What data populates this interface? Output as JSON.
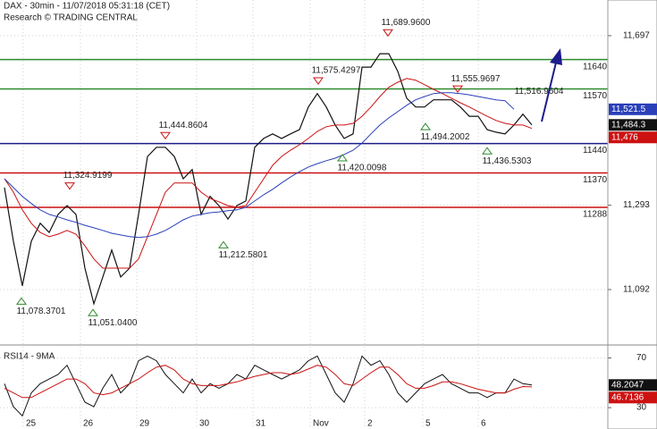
{
  "chart_data": {
    "type": "line",
    "title": "DAX - 30min - 11/07/2018 05:31:18 (CET)",
    "subtitle": "Research © TRADING CENTRAL",
    "x": [
      0,
      1,
      2,
      3,
      4,
      5,
      6,
      7,
      8,
      9,
      10,
      11,
      12,
      13,
      14,
      15,
      16,
      17,
      18,
      19,
      20,
      21,
      22,
      23,
      24,
      25,
      26,
      27,
      28,
      29,
      30,
      31,
      32,
      33,
      34,
      35,
      36,
      37,
      38,
      39,
      40,
      41,
      42,
      43,
      44,
      45,
      46,
      47,
      48,
      49,
      50,
      51,
      52,
      53,
      54,
      55,
      56,
      57,
      58,
      59
    ],
    "xlim": [
      -0.5,
      67.5
    ],
    "xticks": [
      {
        "value": 2.1,
        "label": "25"
      },
      {
        "value": 8.5,
        "label": "26"
      },
      {
        "value": 14.8,
        "label": "29"
      },
      {
        "value": 21.5,
        "label": "30"
      },
      {
        "value": 27.8,
        "label": "31"
      },
      {
        "value": 34.2,
        "label": "Nov"
      },
      {
        "value": 40.3,
        "label": "2"
      },
      {
        "value": 46.8,
        "label": "5"
      },
      {
        "value": 53,
        "label": "6"
      }
    ],
    "ylim": [
      10962,
      11782
    ],
    "yticks": [
      {
        "value": 11697,
        "label": "11,697"
      },
      {
        "value": 11293,
        "label": "11,293"
      },
      {
        "value": 11092,
        "label": "11,092"
      }
    ],
    "grid": true,
    "series": [
      {
        "color": "#111111",
        "width": 1.2,
        "values": [
          11335,
          11207,
          11101,
          11207,
          11250,
          11228,
          11271,
          11292,
          11271,
          11143,
          11058,
          11122,
          11186,
          11122,
          11143,
          11271,
          11409,
          11431,
          11431,
          11409,
          11356,
          11378,
          11271,
          11314,
          11292,
          11260,
          11292,
          11303,
          11431,
          11452,
          11463,
          11452,
          11463,
          11473,
          11527,
          11559,
          11527,
          11484,
          11452,
          11463,
          11622,
          11622,
          11654,
          11654,
          11612,
          11548,
          11527,
          11527,
          11544,
          11544,
          11544,
          11527,
          11505,
          11505,
          11473,
          11467,
          11463,
          11484,
          11510,
          11484.3
        ],
        "last_label": "11,484.3"
      },
      {
        "color": "#cc1111",
        "width": 1,
        "values": [
          11356,
          11324,
          11282,
          11250,
          11228,
          11218,
          11224,
          11233,
          11224,
          11196,
          11165,
          11143,
          11143,
          11143,
          11143,
          11165,
          11218,
          11271,
          11324,
          11346,
          11346,
          11346,
          11324,
          11309,
          11301,
          11292,
          11288,
          11292,
          11324,
          11356,
          11388,
          11409,
          11424,
          11437,
          11452,
          11469,
          11480,
          11484,
          11484,
          11488,
          11505,
          11527,
          11552,
          11574,
          11586,
          11595,
          11591,
          11580,
          11569,
          11559,
          11548,
          11537,
          11527,
          11516,
          11505,
          11495,
          11488,
          11484,
          11484,
          11476
        ],
        "last_label": "11,476"
      },
      {
        "color": "#2a3fb8",
        "width": 1,
        "values": [
          11356,
          11335,
          11314,
          11297,
          11282,
          11271,
          11265,
          11258,
          11252,
          11245,
          11239,
          11233,
          11226,
          11222,
          11218,
          11216,
          11218,
          11224,
          11233,
          11245,
          11258,
          11267,
          11271,
          11275,
          11277,
          11280,
          11282,
          11288,
          11303,
          11318,
          11331,
          11346,
          11360,
          11373,
          11384,
          11392,
          11399,
          11405,
          11414,
          11424,
          11441,
          11463,
          11484,
          11501,
          11516,
          11531,
          11544,
          11552,
          11559,
          11561,
          11561,
          11559,
          11556,
          11552,
          11548,
          11544,
          11542,
          11521.5,
          null,
          null
        ],
        "last_label": "11,521.5"
      }
    ],
    "levels": [
      {
        "value": 11640,
        "color": "#2e8b2e"
      },
      {
        "value": 11570,
        "color": "#2e8b2e"
      },
      {
        "value": 11440,
        "color": "#1c1c8c"
      },
      {
        "value": 11370,
        "color": "#cc1111"
      },
      {
        "value": 11288,
        "color": "#cc1111"
      }
    ],
    "annotations": [
      {
        "x": 1.9,
        "value": 11078.3701,
        "label": "11,078.3701",
        "kind": "trough"
      },
      {
        "x": 7.3,
        "value": 11324.9199,
        "label": "11,324.9199",
        "kind": "peak"
      },
      {
        "x": 9.9,
        "value": 11051.04,
        "label": "11,051.0400",
        "kind": "trough"
      },
      {
        "x": 18,
        "value": 11444.8604,
        "label": "11,444.8604",
        "kind": "peak"
      },
      {
        "x": 24.5,
        "value": 11212.5801,
        "label": "11,212.5801",
        "kind": "trough"
      },
      {
        "x": 35.1,
        "value": 11575.4297,
        "label": "11,575.4297",
        "kind": "peak"
      },
      {
        "x": 37.8,
        "value": 11420.0098,
        "label": "11,420.0098",
        "kind": "trough"
      },
      {
        "x": 42.9,
        "value": 11689.96,
        "label": "11,689.9600",
        "kind": "peak"
      },
      {
        "x": 47.1,
        "value": 11494.2002,
        "label": "11,494.2002",
        "kind": "trough"
      },
      {
        "x": 50.7,
        "value": 11555.9697,
        "label": "11,555.9697",
        "kind": "peak"
      },
      {
        "x": 54,
        "value": 11436.5303,
        "label": "11,436.5303",
        "kind": "trough"
      },
      {
        "x": 59.8,
        "value": 11516.9604,
        "label": "11,516.9604",
        "kind": "label"
      }
    ],
    "rsi": {
      "label": "RSI14 - 9MA",
      "ylim": [
        20,
        79
      ],
      "yticks": [
        70,
        30
      ],
      "series": [
        {
          "color": "#111111",
          "values": [
            49.3,
            30.7,
            23.3,
            41.9,
            49.3,
            53.0,
            56.7,
            64.1,
            49.3,
            34.4,
            30.7,
            45.6,
            56.7,
            41.9,
            49.3,
            67.8,
            71.5,
            67.8,
            56.7,
            49.3,
            41.9,
            53.0,
            41.9,
            49.3,
            45.6,
            49.3,
            56.7,
            53.0,
            64.1,
            60.4,
            56.7,
            53.0,
            56.7,
            60.4,
            67.8,
            71.5,
            56.7,
            41.9,
            34.4,
            49.3,
            71.5,
            64.1,
            67.8,
            56.7,
            41.9,
            34.4,
            41.9,
            49.3,
            53.0,
            56.7,
            49.3,
            45.6,
            41.9,
            41.9,
            38.1,
            41.9,
            41.9,
            53.0,
            49.3,
            48.2047
          ],
          "last_label": "48.2047"
        },
        {
          "color": "#cc1111",
          "values": [
            45.6,
            41.9,
            38.1,
            38.1,
            41.9,
            45.6,
            49.3,
            53.0,
            53.0,
            49.3,
            41.9,
            40.4,
            41.9,
            45.6,
            49.3,
            53.0,
            58.1,
            62.6,
            64.1,
            60.4,
            53.0,
            49.3,
            47.8,
            47.8,
            47.8,
            49.3,
            50.7,
            53.0,
            55.2,
            56.7,
            58.1,
            58.1,
            56.7,
            58.1,
            61.1,
            64.1,
            62.6,
            56.7,
            49.3,
            47.8,
            53.0,
            58.1,
            62.6,
            62.6,
            56.7,
            49.3,
            45.6,
            45.6,
            47.8,
            50.7,
            50.7,
            49.3,
            47.0,
            44.8,
            43.3,
            41.9,
            41.9,
            44.8,
            47.0,
            46.7136
          ],
          "last_label": "46.7136"
        }
      ]
    }
  }
}
